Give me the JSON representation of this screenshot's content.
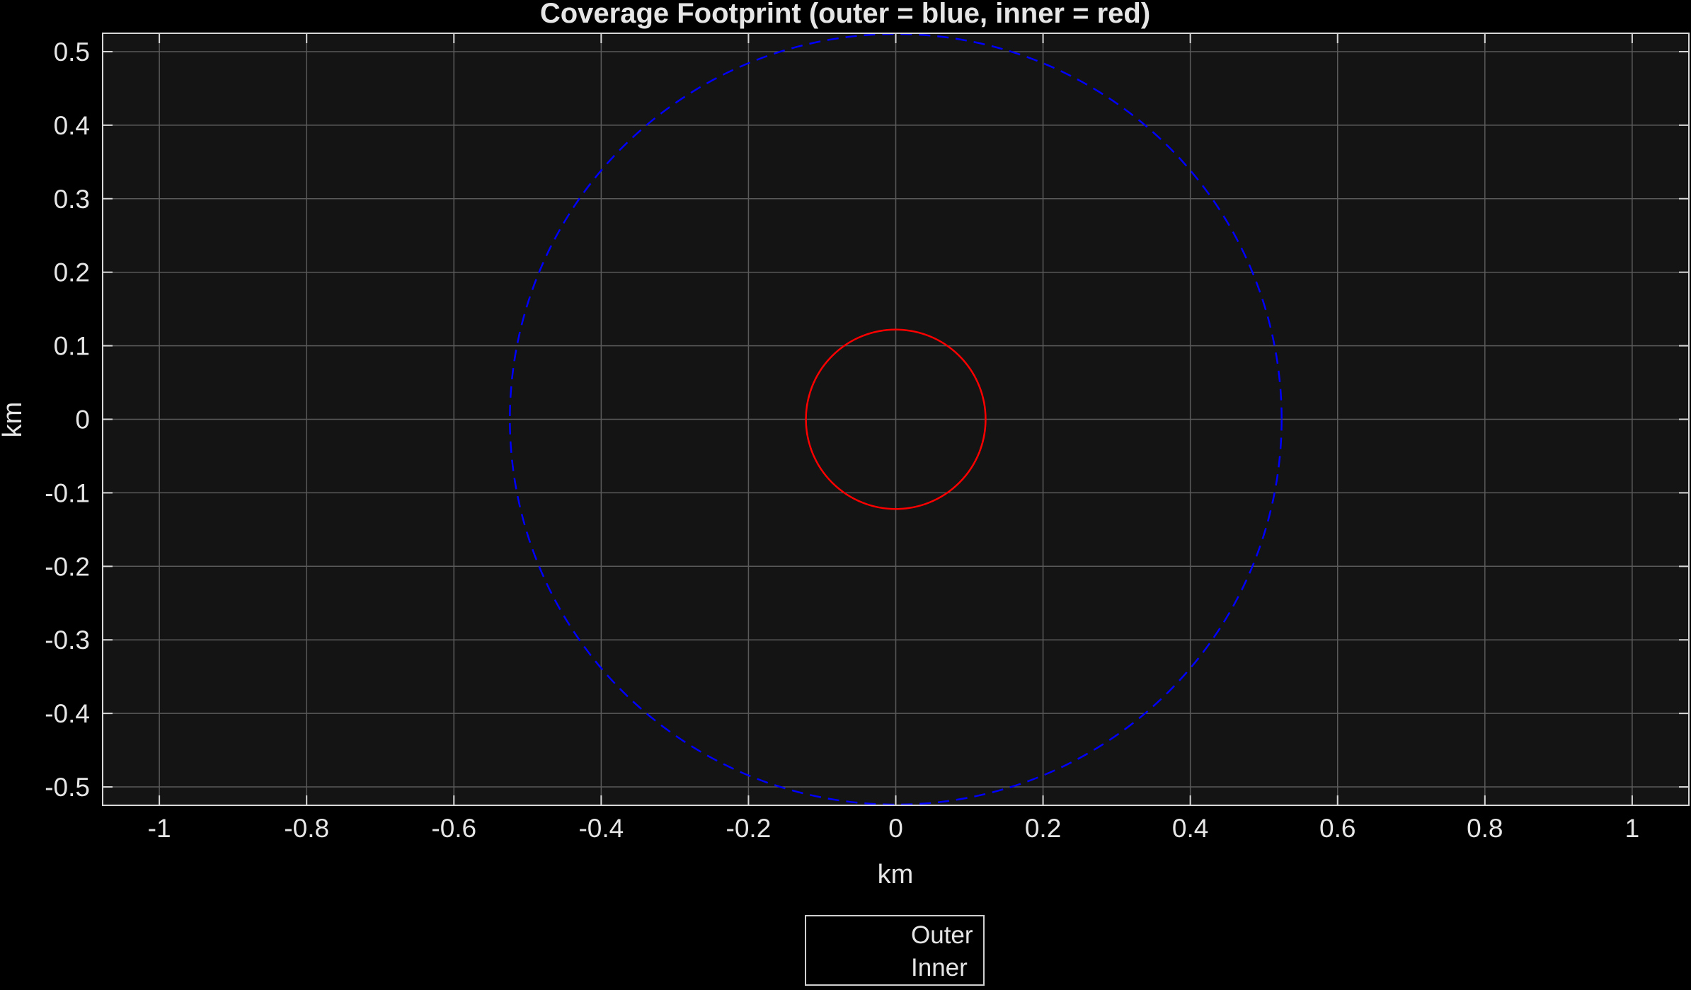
{
  "chart_data": {
    "type": "line",
    "title": "Coverage Footprint (outer = blue, inner = red)",
    "xlabel": "km",
    "ylabel": "km",
    "xlim": [
      -1.077,
      1.077
    ],
    "ylim": [
      -0.525,
      0.525
    ],
    "xticks": [
      -1,
      -0.8,
      -0.6,
      -0.4,
      -0.2,
      0,
      0.2,
      0.4,
      0.6,
      0.8,
      1
    ],
    "xtick_labels": [
      "-1",
      "-0.8",
      "-0.6",
      "-0.4",
      "-0.2",
      "0",
      "0.2",
      "0.4",
      "0.6",
      "0.8",
      "1"
    ],
    "yticks": [
      0.5,
      0.4,
      0.3,
      0.2,
      0.1,
      0,
      -0.1,
      -0.2,
      -0.3,
      -0.4,
      -0.5
    ],
    "ytick_labels": [
      "0.5",
      "0.4",
      "0.3",
      "0.2",
      "0.1",
      "0",
      "-0.1",
      "-0.2",
      "-0.3",
      "-0.4",
      "-0.5"
    ],
    "grid": true,
    "legend_position": "bottom-outside",
    "series": [
      {
        "name": "Outer",
        "shape": "circle",
        "center": [
          0,
          0
        ],
        "radius": 0.524,
        "color": "#0000ff",
        "line_style": "dashed"
      },
      {
        "name": "Inner",
        "shape": "circle",
        "center": [
          0,
          0
        ],
        "radius": 0.122,
        "color": "#ff0000",
        "line_style": "solid"
      }
    ]
  },
  "colors": {
    "figure_background": "#000000",
    "axes_background": "#141414",
    "grid": "#5a5a5a",
    "text": "#e6e6e6",
    "outer": "#0000ff",
    "inner": "#ff0000"
  }
}
